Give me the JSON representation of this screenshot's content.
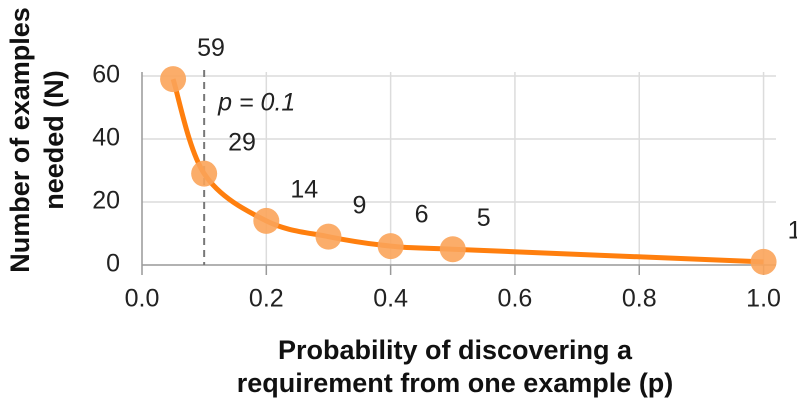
{
  "chart_data": {
    "type": "line",
    "x": [
      0.05,
      0.1,
      0.2,
      0.3,
      0.4,
      0.5,
      1.0
    ],
    "values": [
      59,
      29,
      14,
      9,
      6,
      5,
      1
    ],
    "color": "#ff7f0e",
    "marker_color": "#fba45a",
    "xlabel": [
      "Probability of discovering a",
      "requirement from one example (p)"
    ],
    "ylabel": [
      "Number of examples",
      "needed (N)"
    ],
    "xlim": [
      0,
      1.02
    ],
    "ylim": [
      0,
      60
    ],
    "xticks": [
      {
        "value": 0,
        "label": "0.0"
      },
      0.2,
      0.4,
      0.6,
      0.8,
      {
        "value": 1,
        "label": "1.0"
      }
    ],
    "yticks": [
      0,
      20,
      40,
      60
    ],
    "grid": true,
    "annotation": {
      "x": 0.1,
      "text": "p = 0.1"
    }
  }
}
